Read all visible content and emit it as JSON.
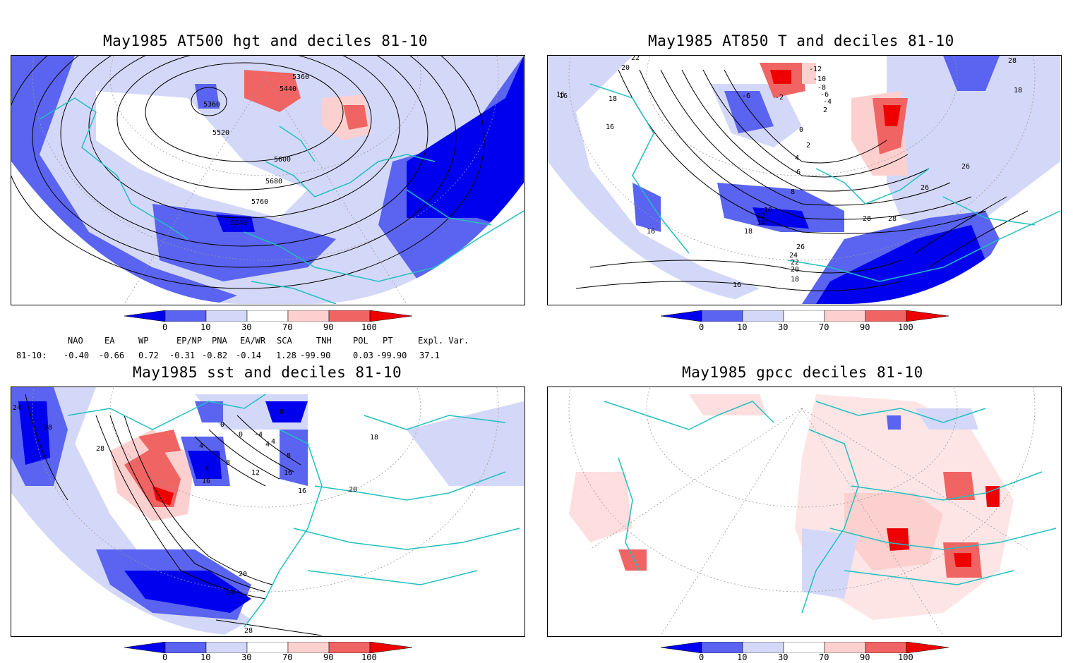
{
  "panels": [
    {
      "title": "May1985 AT500 hgt and deciles 81-10",
      "contour_labels": [
        "5360",
        "5440",
        "5360",
        "5520",
        "5600",
        "5680",
        "5760",
        "5840"
      ]
    },
    {
      "title": "May1985 AT850 T and deciles 81-10",
      "contour_labels": [
        "22",
        "20",
        "16",
        "18",
        "16",
        "16",
        "-6",
        "-2",
        "-12",
        "-10",
        "-8",
        "-6",
        "-4",
        "2",
        "0",
        "2",
        "4",
        "6",
        "8",
        "10",
        "12",
        "14",
        "18",
        "24",
        "22",
        "20",
        "18",
        "16",
        "26",
        "26",
        "28",
        "28",
        "26",
        "18",
        "28",
        "16"
      ]
    },
    {
      "title": "May1985 sst and deciles 81-10",
      "contour_labels": [
        "24",
        "28",
        "28",
        "0",
        "0",
        "4",
        "4",
        "4",
        "8",
        "12",
        "16",
        "16",
        "16",
        "20",
        "20",
        "24",
        "28",
        "0",
        "18",
        "-4",
        "4",
        "8"
      ]
    },
    {
      "title": "May1985 gpcc deciles 81-10",
      "contour_labels": []
    }
  ],
  "colorbar": {
    "ticks": [
      "0",
      "10",
      "30",
      "70",
      "90",
      "100"
    ],
    "colors": [
      "#0000ee",
      "#5a64f0",
      "#d4d8f8",
      "#ffffff",
      "#fdd0d0",
      "#f06464",
      "#ee0000"
    ]
  },
  "teleconnections": {
    "headers": [
      "NAO",
      "EA",
      "WP",
      "EP/NP",
      "PNA",
      "EA/WR",
      "SCA",
      "TNH",
      "POL",
      "PT",
      "Expl. Var."
    ],
    "row_label": "81-10:",
    "values": [
      "-0.40",
      "-0.66",
      "0.72",
      "-0.31",
      "-0.82",
      "-0.14",
      "1.28",
      "-99.90",
      "0.03",
      "-99.90",
      "37.1"
    ]
  },
  "colors": {
    "coast": "#20c0c0",
    "strong_blue": "#0000ee",
    "mid_blue": "#5a64f0",
    "light_blue": "#d4d8f8",
    "light_red": "#fdd0d0",
    "mid_red": "#f06464",
    "strong_red": "#ee0000"
  }
}
